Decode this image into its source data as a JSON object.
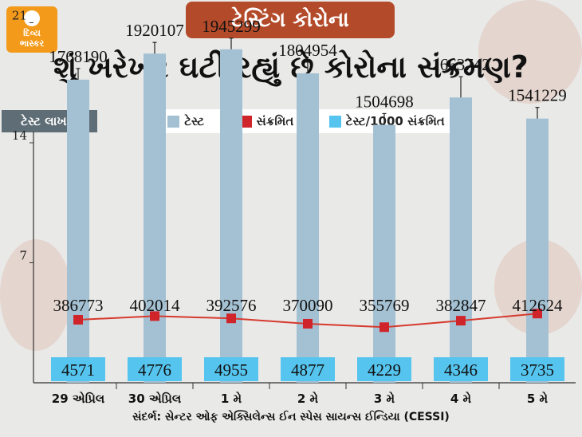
{
  "brand": {
    "line1": "દિવ્ય",
    "line2": "ભાસ્કર"
  },
  "topic_label": "ટેસ્ટિંગ કોરોના",
  "headline": "શું ખરેખર ઘટી રહ્યું છે કોરોના સંક્રમણ?",
  "source": "સંદર્ભ: સેન્ટર ઓફ એક્સિલેન્સ ઈન સ્પેસ સાયન્સ ઈન્ડિયા (CESSI)",
  "colors": {
    "bar": "#a4c1d3",
    "line": "#d63a2e",
    "marker": "#d0242b",
    "ratio_box": "#55c4ee"
  },
  "chart_data": {
    "type": "bar",
    "ylabel": "ટેસ્ટ લાખમાં",
    "yticks": [
      7,
      14,
      21
    ],
    "ylim": [
      0,
      26
    ],
    "categories": [
      "29 એપ્રિલ",
      "30 એપ્રિલ",
      "1 મે",
      "2 મે",
      "3 મે",
      "4 મે",
      "5 મે"
    ],
    "legend": {
      "placement": "top",
      "entries": [
        "ટેસ્ટ",
        "સંક્રમિત",
        "ટેસ્ટ/1000 સંક્રમિત"
      ]
    },
    "series": [
      {
        "name": "ટેસ્ટ",
        "type": "bar",
        "axis": "left",
        "values": [
          17.68,
          19.2,
          19.45,
          18.05,
          15.05,
          16.64,
          15.41
        ],
        "labels": [
          "1768190",
          "1920107",
          "1945299",
          "1804954",
          "1504698",
          "1663742",
          "1541229"
        ]
      },
      {
        "name": "સંક્રમિત",
        "type": "line",
        "values": [
          386773,
          402014,
          392576,
          370090,
          355769,
          382847,
          412624
        ],
        "labels": [
          "386773",
          "402014",
          "392576",
          "370090",
          "355769",
          "382847",
          "412624"
        ]
      },
      {
        "name": "ટેસ્ટ/1000 સંક્રમિત",
        "type": "label",
        "values": [
          4571,
          4776,
          4955,
          4877,
          4229,
          4346,
          3735
        ],
        "labels": [
          "4571",
          "4776",
          "4955",
          "4877",
          "4229",
          "4346",
          "3735"
        ]
      }
    ]
  }
}
